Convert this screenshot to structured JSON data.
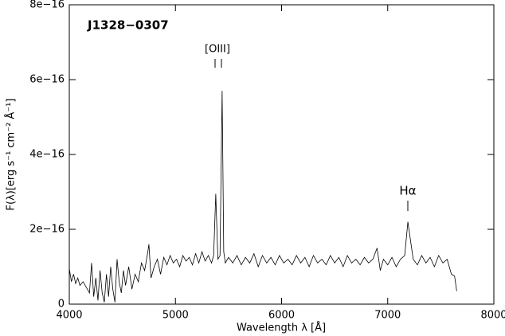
{
  "chart_data": {
    "type": "line",
    "title": "J1328−0307",
    "x_label": "Wavelength λ [Å]",
    "y_label": "F(λ)[erg s⁻¹ cm⁻² Å⁻¹]",
    "annotations": [
      "[OIII]",
      "Hα"
    ],
    "xlim": [
      4000,
      8000
    ],
    "xticks": [
      4000,
      5000,
      6000,
      7000,
      8000
    ],
    "ylim": [
      0,
      8e-16
    ],
    "yticks": [
      0,
      {
        "value": 2e-16,
        "label": "2e−16"
      },
      {
        "value": 4e-16,
        "label": "4e−16"
      },
      {
        "value": 6e-16,
        "label": "6e−16"
      },
      {
        "value": 8e-16,
        "label": "8e−16"
      }
    ],
    "grid": false,
    "x": [
      4000,
      4020,
      4040,
      4060,
      4080,
      4100,
      4130,
      4160,
      4190,
      4210,
      4230,
      4250,
      4270,
      4290,
      4310,
      4330,
      4350,
      4370,
      4390,
      4410,
      4430,
      4450,
      4470,
      4490,
      4510,
      4530,
      4560,
      4590,
      4620,
      4650,
      4680,
      4710,
      4740,
      4750,
      4770,
      4800,
      4830,
      4860,
      4890,
      4920,
      4950,
      4980,
      5010,
      5040,
      5070,
      5100,
      5130,
      5160,
      5190,
      5220,
      5250,
      5280,
      5310,
      5340,
      5360,
      5380,
      5400,
      5420,
      5440,
      5455,
      5470,
      5500,
      5540,
      5580,
      5620,
      5660,
      5700,
      5740,
      5780,
      5820,
      5860,
      5900,
      5940,
      5980,
      6020,
      6060,
      6100,
      6140,
      6180,
      6220,
      6260,
      6300,
      6340,
      6380,
      6420,
      6460,
      6500,
      6540,
      6580,
      6620,
      6660,
      6700,
      6740,
      6780,
      6820,
      6860,
      6900,
      6930,
      6960,
      7000,
      7040,
      7080,
      7120,
      7160,
      7190,
      7210,
      7240,
      7280,
      7320,
      7360,
      7400,
      7440,
      7480,
      7520,
      7560,
      7600,
      7630,
      7650
    ],
    "series": [
      {
        "color": "#000000",
        "values": [
          9.5e-17,
          6e-17,
          8e-17,
          5.5e-17,
          7e-17,
          5e-17,
          6e-17,
          4.5e-17,
          3e-17,
          1.1e-16,
          2e-17,
          7e-17,
          1e-17,
          9e-17,
          3e-17,
          5e-18,
          8e-17,
          2e-17,
          1e-16,
          4e-17,
          5e-18,
          1.2e-16,
          6e-17,
          3e-17,
          9e-17,
          5e-17,
          1e-16,
          4e-17,
          8e-17,
          6e-17,
          1.1e-16,
          9e-17,
          1.4e-16,
          1.6e-16,
          7e-17,
          1e-16,
          1.2e-16,
          8e-17,
          1.25e-16,
          1.05e-16,
          1.3e-16,
          1.1e-16,
          1.2e-16,
          1e-16,
          1.3e-16,
          1.15e-16,
          1.25e-16,
          1.05e-16,
          1.35e-16,
          1.1e-16,
          1.4e-16,
          1.15e-16,
          1.3e-16,
          1.1e-16,
          1.3e-16,
          2.95e-16,
          1.2e-16,
          1.3e-16,
          5.7e-16,
          1.4e-16,
          1.1e-16,
          1.25e-16,
          1.1e-16,
          1.3e-16,
          1.05e-16,
          1.25e-16,
          1.1e-16,
          1.35e-16,
          1e-16,
          1.3e-16,
          1.1e-16,
          1.25e-16,
          1.05e-16,
          1.3e-16,
          1.1e-16,
          1.2e-16,
          1.05e-16,
          1.3e-16,
          1.1e-16,
          1.25e-16,
          1e-16,
          1.3e-16,
          1.1e-16,
          1.2e-16,
          1.05e-16,
          1.3e-16,
          1.1e-16,
          1.25e-16,
          1e-16,
          1.3e-16,
          1.1e-16,
          1.2e-16,
          1.05e-16,
          1.25e-16,
          1.1e-16,
          1.2e-16,
          1.5e-16,
          9e-17,
          1.2e-16,
          1.05e-16,
          1.25e-16,
          1e-16,
          1.2e-16,
          1.3e-16,
          2.2e-16,
          1.8e-16,
          1.2e-16,
          1.05e-16,
          1.3e-16,
          1.1e-16,
          1.25e-16,
          1e-16,
          1.3e-16,
          1.1e-16,
          1.2e-16,
          8e-17,
          7.5e-17,
          3.5e-17
        ]
      }
    ]
  }
}
